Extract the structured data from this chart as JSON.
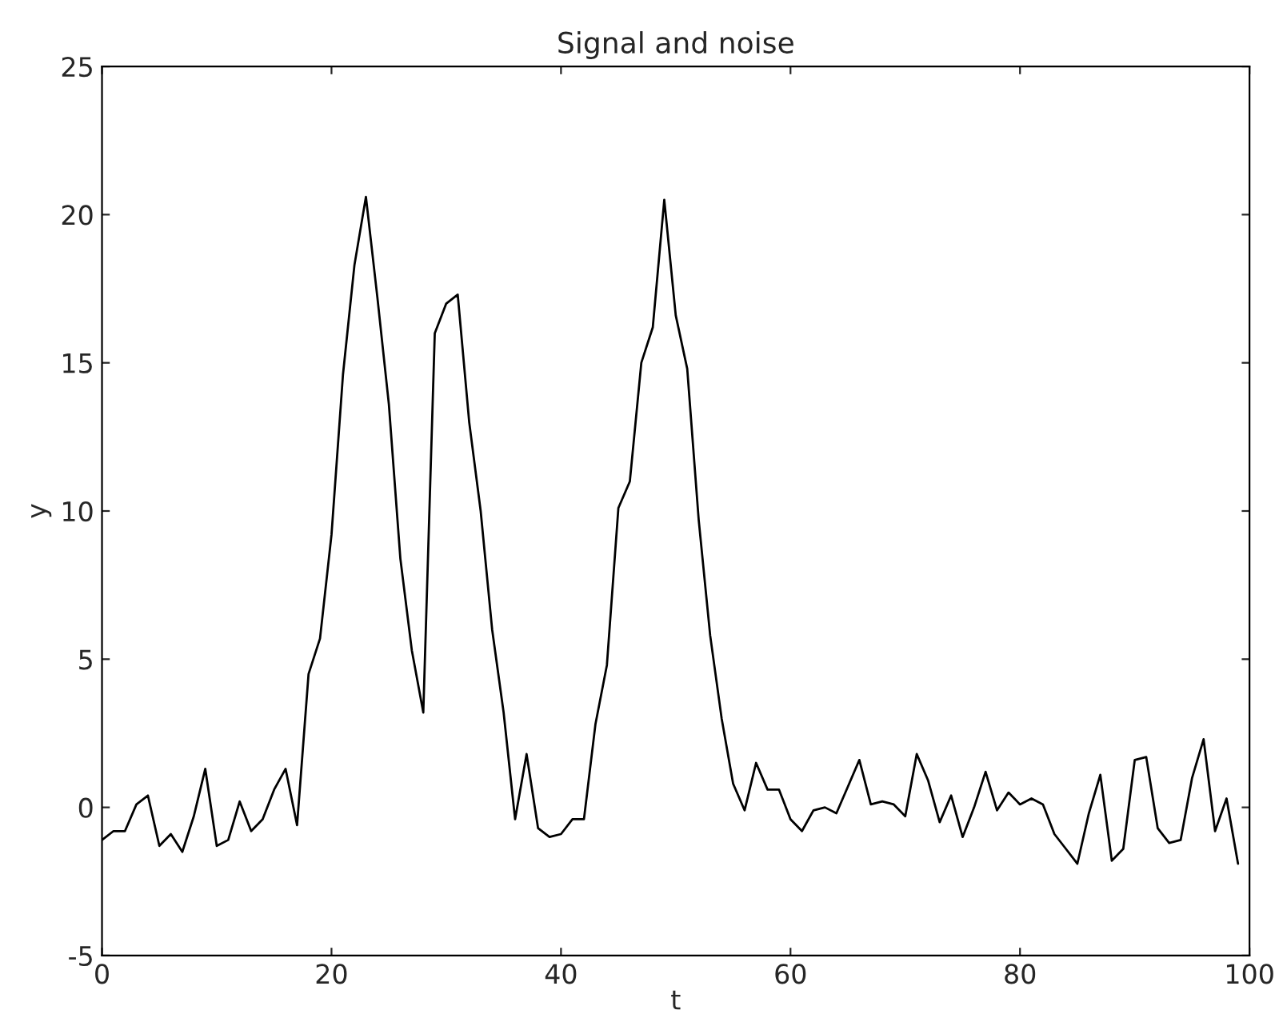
{
  "chart_data": {
    "type": "line",
    "title": "Signal and noise",
    "xlabel": "t",
    "ylabel": "y",
    "x": [
      0,
      1,
      2,
      3,
      4,
      5,
      6,
      7,
      8,
      9,
      10,
      11,
      12,
      13,
      14,
      15,
      16,
      17,
      18,
      19,
      20,
      21,
      22,
      23,
      24,
      25,
      26,
      27,
      28,
      29,
      30,
      31,
      32,
      33,
      34,
      35,
      36,
      37,
      38,
      39,
      40,
      41,
      42,
      43,
      44,
      45,
      46,
      47,
      48,
      49,
      50,
      51,
      52,
      53,
      54,
      55,
      56,
      57,
      58,
      59,
      60,
      61,
      62,
      63,
      64,
      65,
      66,
      67,
      68,
      69,
      70,
      71,
      72,
      73,
      74,
      75,
      76,
      77,
      78,
      79,
      80,
      81,
      82,
      83,
      84,
      85,
      86,
      87,
      88,
      89,
      90,
      91,
      92,
      93,
      94,
      95,
      96,
      97,
      98,
      99
    ],
    "series": [
      {
        "color": "#000000",
        "values": [
          -1.1,
          -0.8,
          -0.8,
          0.1,
          0.4,
          -1.3,
          -0.9,
          -1.5,
          -0.3,
          1.3,
          -1.3,
          -1.1,
          0.2,
          -0.8,
          -0.4,
          0.6,
          1.3,
          -0.6,
          4.5,
          5.7,
          9.2,
          14.6,
          18.3,
          20.6,
          17.2,
          13.6,
          8.4,
          5.3,
          3.2,
          16.0,
          17.0,
          17.3,
          13.0,
          10.0,
          6.0,
          3.2,
          -0.4,
          1.8,
          -0.7,
          -1.0,
          -0.9,
          -0.4,
          -0.4,
          2.8,
          4.8,
          10.1,
          11.0,
          15.0,
          16.2,
          20.5,
          16.6,
          14.8,
          9.7,
          5.8,
          3.0,
          0.8,
          -0.1,
          1.5,
          0.6,
          0.6,
          -0.4,
          -0.8,
          -0.1,
          0.0,
          -0.2,
          0.7,
          1.6,
          0.1,
          0.2,
          0.1,
          -0.3,
          1.8,
          0.9,
          -0.5,
          0.4,
          -1.0,
          0.0,
          1.2,
          -0.1,
          0.5,
          0.1,
          0.3,
          0.1,
          -0.9,
          -1.4,
          -1.9,
          -0.2,
          1.1,
          -1.8,
          -1.4,
          1.6,
          1.7,
          -0.7,
          -1.2,
          -1.1,
          1.0,
          2.3,
          -0.8,
          0.3,
          -1.9
        ]
      }
    ],
    "xlim": [
      0,
      100
    ],
    "xticks": [
      0,
      20,
      40,
      60,
      80,
      100
    ],
    "ylim": [
      -5,
      25
    ],
    "yticks": [
      -5,
      0,
      5,
      10,
      15,
      20,
      25
    ],
    "grid": false,
    "legend": false,
    "marker": "none",
    "line_style": "solid"
  }
}
